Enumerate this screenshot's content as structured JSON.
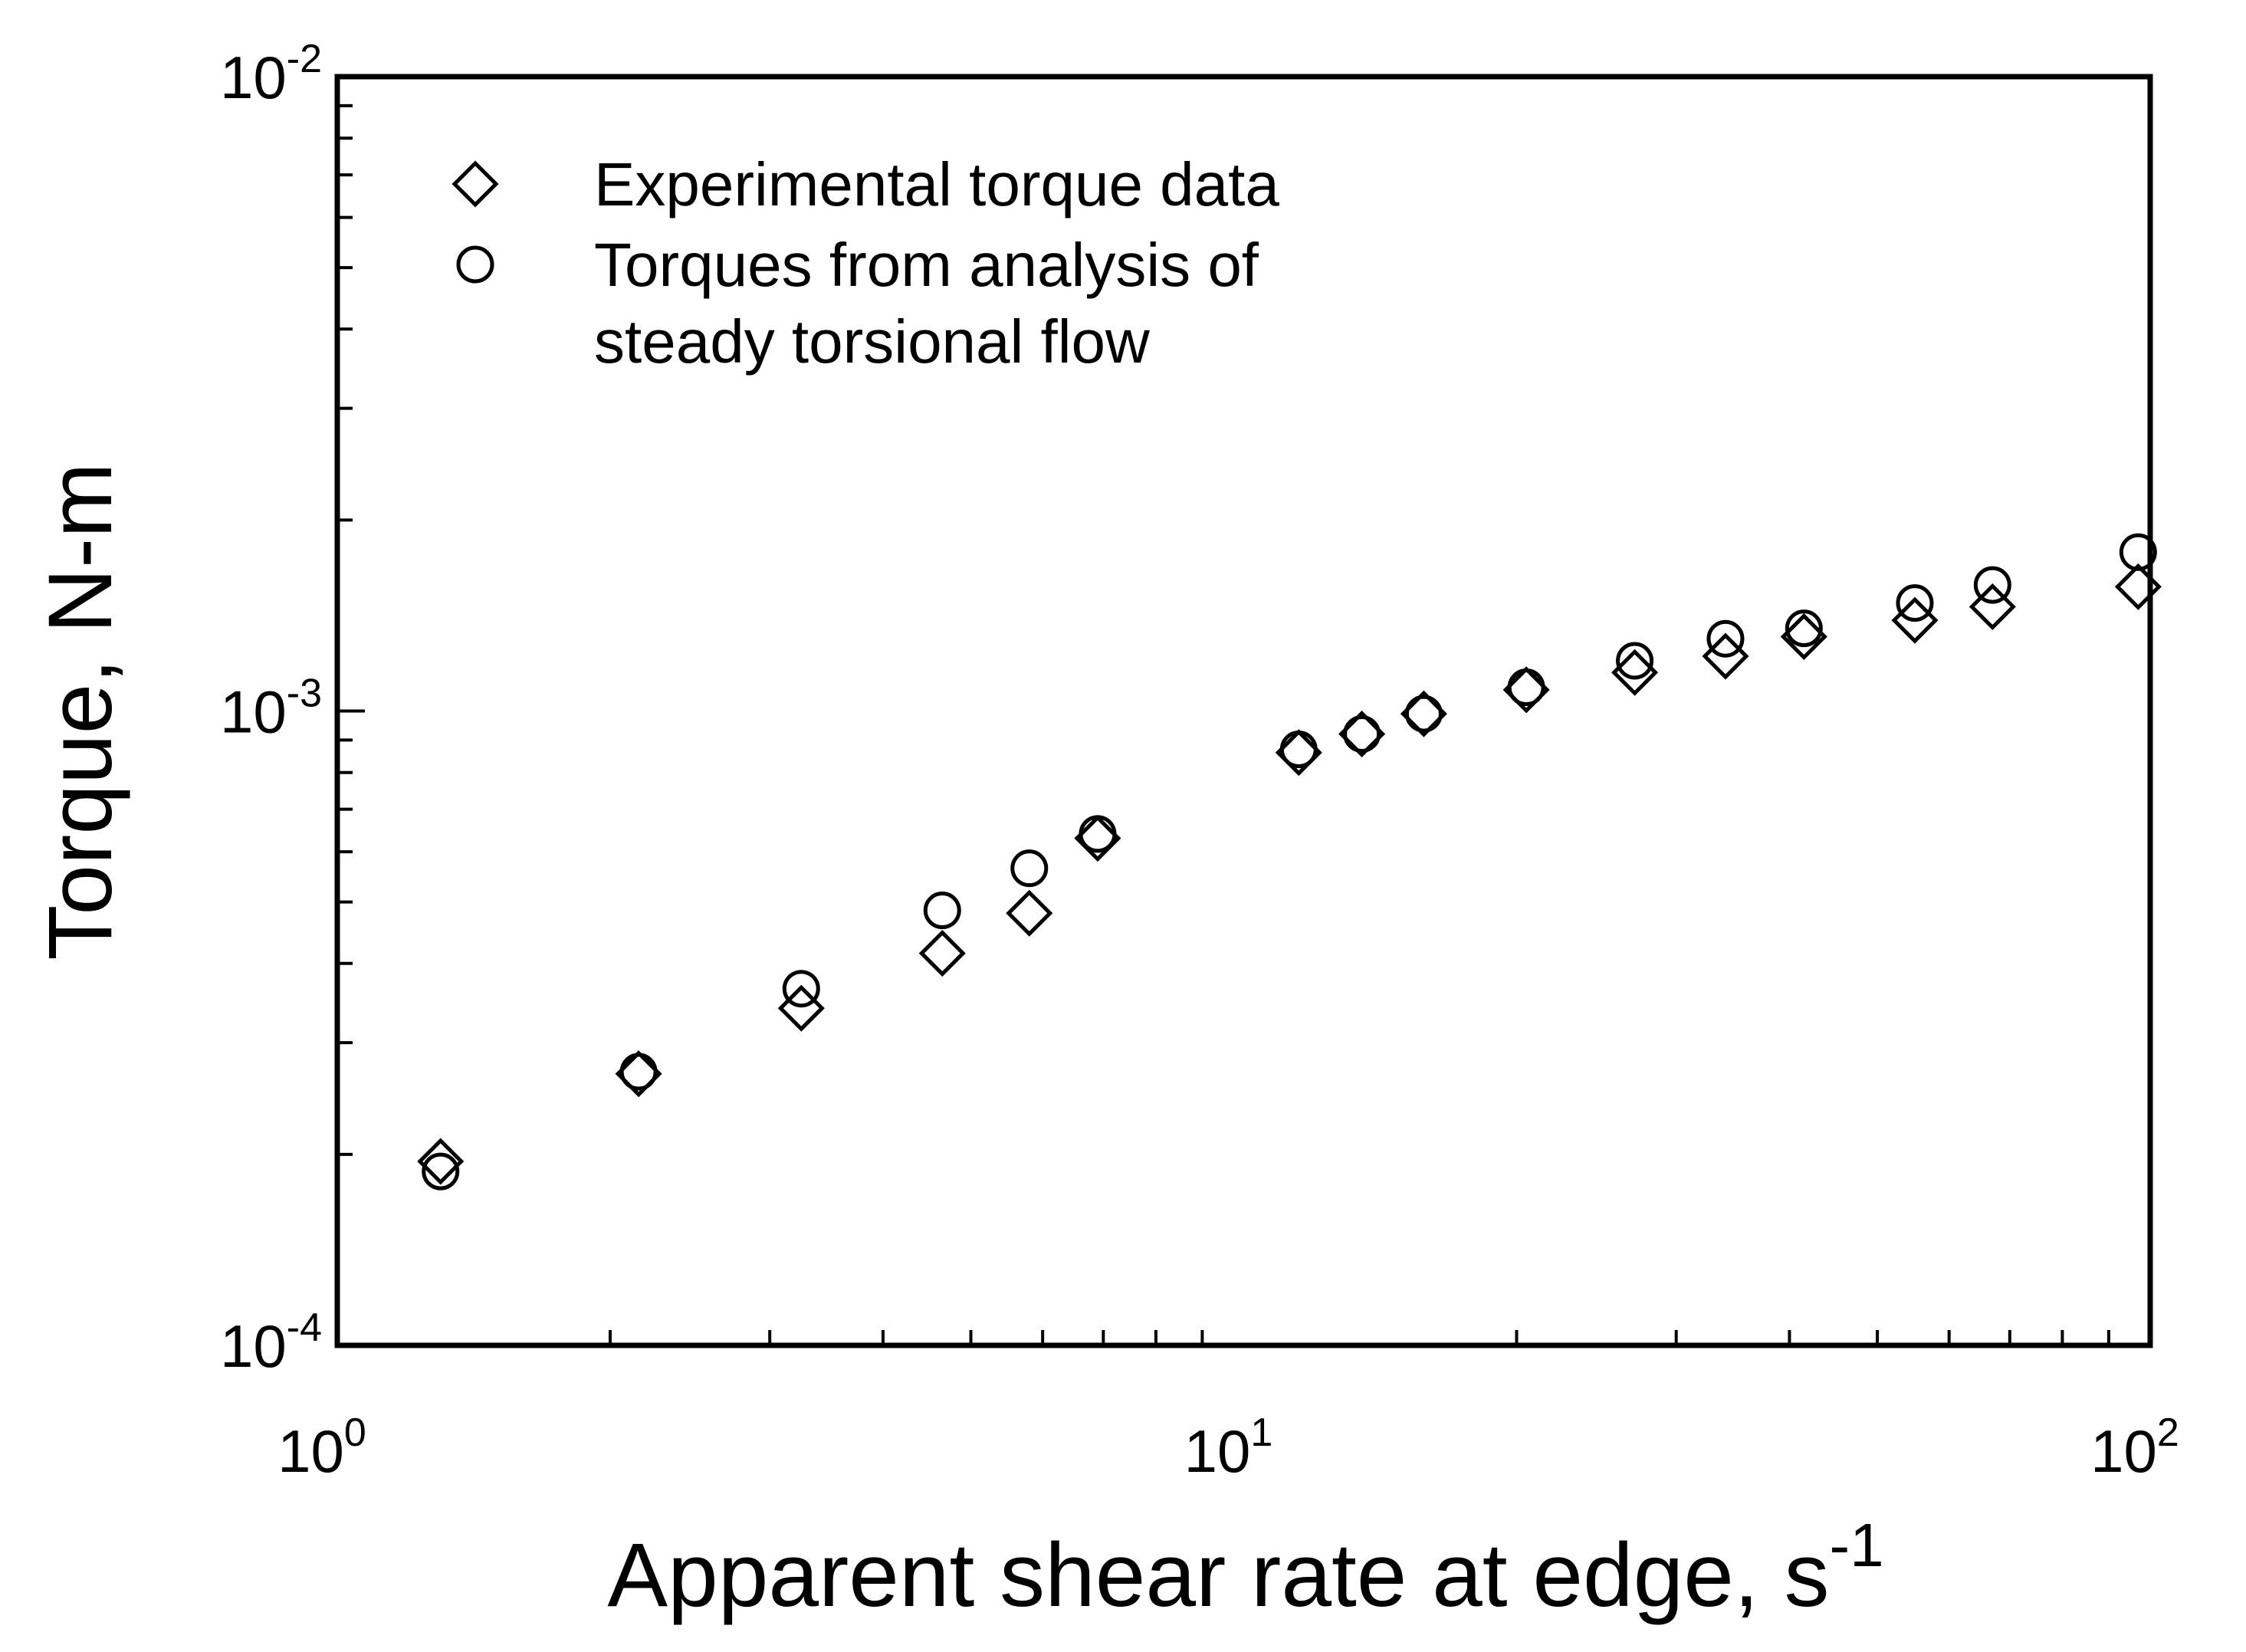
{
  "chart_data": {
    "type": "scatter",
    "title": "",
    "xlabel": "Apparent shear rate at edge, s",
    "xlabel_superscript": "-1",
    "ylabel": "Torque, N-m",
    "xscale": "log",
    "yscale": "log",
    "xlim": [
      1,
      100
    ],
    "ylim": [
      0.0001,
      0.01
    ],
    "x_ticks": [
      {
        "base": "10",
        "exp": "0"
      },
      {
        "base": "10",
        "exp": "1"
      },
      {
        "base": "10",
        "exp": "2"
      }
    ],
    "y_ticks": [
      {
        "base": "10",
        "exp": "-4"
      },
      {
        "base": "10",
        "exp": "-3"
      },
      {
        "base": "10",
        "exp": "-2"
      }
    ],
    "grid": false,
    "legend_position": "top-left",
    "series": [
      {
        "name": "Experimental torque data",
        "marker": "diamond",
        "x": [
          1.3,
          2.15,
          3.25,
          4.65,
          5.8,
          6.9,
          11.5,
          13.5,
          15.8,
          20.5,
          27,
          34,
          41.5,
          55,
          67,
          97
        ],
        "y": [
          0.000195,
          0.000268,
          0.00034,
          0.000415,
          0.00048,
          0.00063,
          0.00086,
          0.00092,
          0.00099,
          0.00108,
          0.00115,
          0.00122,
          0.00131,
          0.00139,
          0.00146,
          0.00157
        ]
      },
      {
        "name": "Torques from analysis of steady torsional flow",
        "marker": "circle",
        "x": [
          1.3,
          2.15,
          3.25,
          4.65,
          5.8,
          6.9,
          11.5,
          13.5,
          15.8,
          20.5,
          27,
          34,
          41.5,
          55,
          67,
          97
        ],
        "y": [
          0.000188,
          0.00027,
          0.000365,
          0.000485,
          0.000565,
          0.00064,
          0.00087,
          0.00092,
          0.00099,
          0.00109,
          0.0012,
          0.0013,
          0.00135,
          0.00148,
          0.00158,
          0.00178
        ]
      }
    ],
    "legend": [
      {
        "marker": "diamond",
        "lines": [
          "Experimental torque data"
        ]
      },
      {
        "marker": "circle",
        "lines": [
          "Torques from analysis of",
          "steady torsional flow"
        ]
      }
    ]
  }
}
